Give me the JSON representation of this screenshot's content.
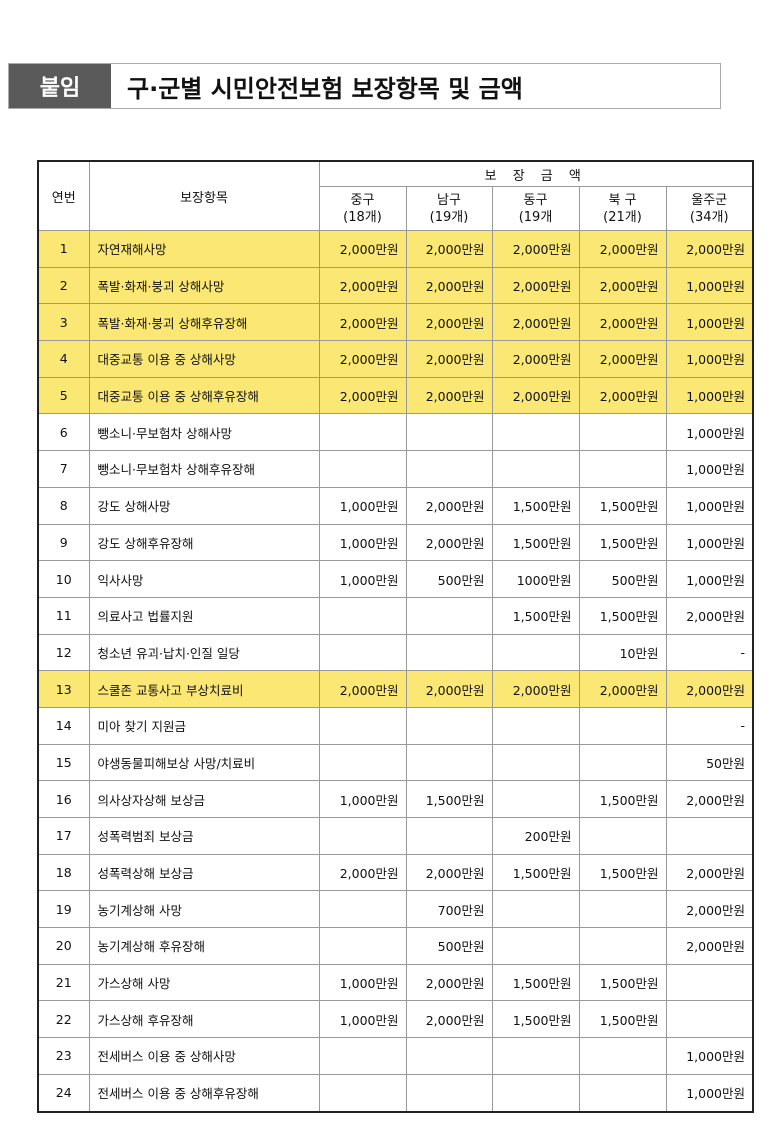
{
  "header": {
    "tag": "붙임",
    "title": "구·군별 시민안전보험 보장항목 및 금액"
  },
  "table": {
    "col_no": "연번",
    "col_item": "보장항목",
    "col_amount": "보 장 금 액",
    "districts": [
      {
        "name": "중구",
        "count": "(18개)"
      },
      {
        "name": "남구",
        "count": "(19개)"
      },
      {
        "name": "동구",
        "count": "(19개"
      },
      {
        "name": "북 구",
        "count": "(21개)"
      },
      {
        "name": "울주군",
        "count": "(34개)"
      }
    ],
    "highlight_color": "#fbe773",
    "rows": [
      {
        "no": "1",
        "item": "자연재해사망",
        "v": [
          "2,000만원",
          "2,000만원",
          "2,000만원",
          "2,000만원",
          "2,000만원"
        ],
        "hl": true
      },
      {
        "no": "2",
        "item": "폭발·화재·붕괴 상해사망",
        "v": [
          "2,000만원",
          "2,000만원",
          "2,000만원",
          "2,000만원",
          "1,000만원"
        ],
        "hl": true
      },
      {
        "no": "3",
        "item": "폭발·화재·붕괴 상해후유장해",
        "v": [
          "2,000만원",
          "2,000만원",
          "2,000만원",
          "2,000만원",
          "1,000만원"
        ],
        "hl": true
      },
      {
        "no": "4",
        "item": "대중교통 이용 중 상해사망",
        "v": [
          "2,000만원",
          "2,000만원",
          "2,000만원",
          "2,000만원",
          "1,000만원"
        ],
        "hl": true
      },
      {
        "no": "5",
        "item": "대중교통 이용  중 상해후유장해",
        "v": [
          "2,000만원",
          "2,000만원",
          "2,000만원",
          "2,000만원",
          "1,000만원"
        ],
        "hl": true
      },
      {
        "no": "6",
        "item": "뺑소니·무보험차 상해사망",
        "v": [
          "",
          "",
          "",
          "",
          "1,000만원"
        ]
      },
      {
        "no": "7",
        "item": "뺑소니·무보험차 상해후유장해",
        "v": [
          "",
          "",
          "",
          "",
          "1,000만원"
        ]
      },
      {
        "no": "8",
        "item": "강도 상해사망",
        "v": [
          "1,000만원",
          "2,000만원",
          "1,500만원",
          "1,500만원",
          "1,000만원"
        ]
      },
      {
        "no": "9",
        "item": "강도 상해후유장해",
        "v": [
          "1,000만원",
          "2,000만원",
          "1,500만원",
          "1,500만원",
          "1,000만원"
        ]
      },
      {
        "no": "10",
        "item": "익사사망",
        "v": [
          "1,000만원",
          "500만원",
          "1000만원",
          "500만원",
          "1,000만원"
        ]
      },
      {
        "no": "11",
        "item": "의료사고 법률지원",
        "v": [
          "",
          "",
          "1,500만원",
          "1,500만원",
          "2,000만원"
        ]
      },
      {
        "no": "12",
        "item": "청소년 유괴·납치·인질 일당",
        "v": [
          "",
          "",
          "",
          "10만원",
          "-"
        ]
      },
      {
        "no": "13",
        "item": "스쿨존 교통사고 부상치료비",
        "v": [
          "2,000만원",
          "2,000만원",
          "2,000만원",
          "2,000만원",
          "2,000만원"
        ],
        "hl": true
      },
      {
        "no": "14",
        "item": "미아 찾기 지원금",
        "v": [
          "",
          "",
          "",
          "",
          "-"
        ]
      },
      {
        "no": "15",
        "item": "야생동물피해보상 사망/치료비",
        "v": [
          "",
          "",
          "",
          "",
          "50만원"
        ]
      },
      {
        "no": "16",
        "item": "의사상자상해 보상금",
        "v": [
          "1,000만원",
          "1,500만원",
          "",
          "1,500만원",
          "2,000만원"
        ]
      },
      {
        "no": "17",
        "item": "성폭력범죄 보상금",
        "v": [
          "",
          "",
          "200만원",
          "",
          ""
        ]
      },
      {
        "no": "18",
        "item": "성폭력상해 보상금",
        "v": [
          "2,000만원",
          "2,000만원",
          "1,500만원",
          "1,500만원",
          "2,000만원"
        ]
      },
      {
        "no": "19",
        "item": "농기계상해 사망",
        "v": [
          "",
          "700만원",
          "",
          "",
          "2,000만원"
        ]
      },
      {
        "no": "20",
        "item": "농기계상해 후유장해",
        "v": [
          "",
          "500만원",
          "",
          "",
          "2,000만원"
        ]
      },
      {
        "no": "21",
        "item": "가스상해 사망",
        "v": [
          "1,000만원",
          "2,000만원",
          "1,500만원",
          "1,500만원",
          ""
        ]
      },
      {
        "no": "22",
        "item": "가스상해 후유장해",
        "v": [
          "1,000만원",
          "2,000만원",
          "1,500만원",
          "1,500만원",
          ""
        ]
      },
      {
        "no": "23",
        "item": "전세버스 이용 중 상해사망",
        "v": [
          "",
          "",
          "",
          "",
          "1,000만원"
        ]
      },
      {
        "no": "24",
        "item": "전세버스 이용 중 상해후유장해",
        "v": [
          "",
          "",
          "",
          "",
          "1,000만원"
        ]
      }
    ]
  }
}
